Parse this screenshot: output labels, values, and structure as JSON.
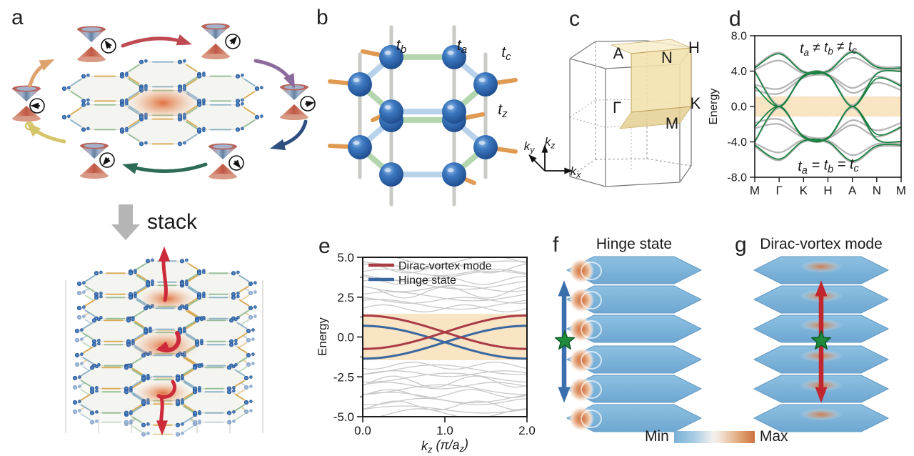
{
  "figure": {
    "panel_labels": {
      "a": "a",
      "b": "b",
      "c": "c",
      "d": "d",
      "e": "e",
      "f": "f",
      "g": "g"
    }
  },
  "panel_a": {
    "stack_label": "stack",
    "vortex_color": "#e07040",
    "cycle_arrows": [
      {
        "position": "top",
        "color": "#bf4a52"
      },
      {
        "position": "top-right",
        "color": "#8c6a9c"
      },
      {
        "position": "right",
        "color": "#2f4f80"
      },
      {
        "position": "bottom",
        "color": "#2e6b57"
      },
      {
        "position": "bottom-left",
        "color": "#d4c569"
      },
      {
        "position": "left",
        "color": "#dfa26d"
      }
    ]
  },
  "panel_b": {
    "hoppings": [
      "t_b",
      "t_a",
      "t_c",
      "t_z"
    ]
  },
  "panel_c": {
    "points": {
      "A": "A",
      "N": "N",
      "H": "H",
      "Gamma": "Γ",
      "K": "K",
      "M": "M"
    },
    "axes": [
      "k_y",
      "k_z",
      "k_x"
    ],
    "plane_color": "#f3e2ae"
  },
  "panel_f": {
    "title": "Hinge state",
    "arrow_color": "#3a6fad",
    "star_color": "#1f8b3d"
  },
  "panel_g": {
    "title": "Dirac-vortex mode",
    "arrow_color": "#c1272d",
    "star_color": "#1f8b3d"
  },
  "colorbar": {
    "min_label": "Min",
    "max_label": "Max",
    "colors": [
      "#79b1d8",
      "#f2f1ee",
      "#cf7040"
    ]
  },
  "chart_data": [
    {
      "id": "panel-d-band-structure",
      "type": "line",
      "ylabel": "Energy",
      "ylim": [
        -8,
        8
      ],
      "yticks": [
        "8.0",
        "4.0",
        "0.0",
        "-4.0",
        "-8.0"
      ],
      "ytick_values": [
        8,
        4,
        0,
        -4,
        -8
      ],
      "xticks": [
        "M",
        "Γ",
        "K",
        "H",
        "A",
        "N",
        "M"
      ],
      "shaded_region": {
        "from": -1.1,
        "to": 1.1,
        "color": "#f9e4c4"
      },
      "annotations": [
        {
          "text": "t_a ≠ t_b ≠ t_c",
          "color": "#9e9e9e"
        },
        {
          "text": "t_a = t_b = t_c",
          "color": "#17803f"
        }
      ],
      "series": [
        {
          "name": "t_a ≠ t_b ≠ t_c",
          "color": "#b3b3b3",
          "mirrored": true,
          "bands": [
            [
              4.5,
              6.1,
              4.0,
              4.1,
              6.3,
              4.6,
              4.5
            ],
            [
              4.15,
              5.2,
              3.75,
              3.85,
              5.5,
              4.25,
              4.15
            ],
            [
              2.45,
              2.0,
              3.5,
              3.6,
              2.1,
              3.4,
              2.45
            ],
            [
              1.85,
              1.45,
              3.25,
              3.45,
              1.55,
              2.7,
              1.85
            ],
            [
              4.0,
              0.15,
              3.55,
              3.65,
              0.15,
              3.75,
              4.0
            ]
          ]
        },
        {
          "name": "t_a = t_b = t_c",
          "color": "#17803f",
          "mirrored": true,
          "bands": [
            [
              4.35,
              5.95,
              3.9,
              4.0,
              6.15,
              4.45,
              4.35
            ],
            [
              2.3,
              0.0,
              3.35,
              3.5,
              0.0,
              3.15,
              2.3
            ],
            [
              3.95,
              0.0,
              3.5,
              3.6,
              0.0,
              3.7,
              3.95
            ]
          ]
        }
      ]
    },
    {
      "id": "panel-e-kz-dispersion",
      "type": "line",
      "xlabel": "k_z (π/a_z)",
      "ylabel": "Energy",
      "xlim": [
        0,
        2
      ],
      "ylim": [
        -5,
        5
      ],
      "xticks": [
        "0.0",
        "1.0",
        "2.0"
      ],
      "xtick_values": [
        0,
        1,
        2
      ],
      "yticks": [
        "5.0",
        "2.5",
        "0.0",
        "-2.5",
        "-5.0"
      ],
      "ytick_values": [
        5,
        2.5,
        0,
        -2.5,
        -5
      ],
      "shaded_region": {
        "from": -1.45,
        "to": 1.45,
        "color": "#f9e4c4"
      },
      "legend": [
        {
          "label": "Dirac-vortex mode",
          "color": "#a93b45"
        },
        {
          "label": "Hinge state",
          "color": "#3a679f"
        }
      ],
      "series": [
        {
          "name": "Dirac-vortex mode",
          "color": "#a93b45",
          "model": "E = c ± a·cos(π·x/2)",
          "center": 0.3,
          "amp": 1.05
        },
        {
          "name": "Hinge state",
          "color": "#3a679f",
          "model": "E = c ± a·cos(π·x/2)",
          "center": -0.33,
          "amp": 1.03
        },
        {
          "name": "bulk bands",
          "color": "#c8c8c8",
          "mirrored": true,
          "bands_params": [
            {
              "b": 1.8,
              "a": 0.22,
              "f": 2,
              "p": 0.0
            },
            {
              "b": 2.05,
              "a": 0.3,
              "f": 1,
              "p": 1.0
            },
            {
              "b": 2.3,
              "a": 0.18,
              "f": 1.5,
              "p": 2.0
            },
            {
              "b": 2.55,
              "a": 0.28,
              "f": 1,
              "p": 0.5
            },
            {
              "b": 2.8,
              "a": 0.35,
              "f": 2,
              "p": 1.5
            },
            {
              "b": 3.05,
              "a": 0.2,
              "f": 1.5,
              "p": 2.5
            },
            {
              "b": 3.3,
              "a": 0.3,
              "f": 1,
              "p": 0.8
            },
            {
              "b": 3.55,
              "a": 0.25,
              "f": 2,
              "p": 1.8
            },
            {
              "b": 3.8,
              "a": 0.33,
              "f": 1,
              "p": 2.8
            },
            {
              "b": 4.05,
              "a": 0.2,
              "f": 1.5,
              "p": 0.3
            },
            {
              "b": 4.3,
              "a": 0.28,
              "f": 2,
              "p": 1.3
            },
            {
              "b": 4.55,
              "a": 0.22,
              "f": 1,
              "p": 2.3
            },
            {
              "b": 4.8,
              "a": 0.3,
              "f": 1.5,
              "p": 0.6
            }
          ]
        }
      ]
    }
  ]
}
